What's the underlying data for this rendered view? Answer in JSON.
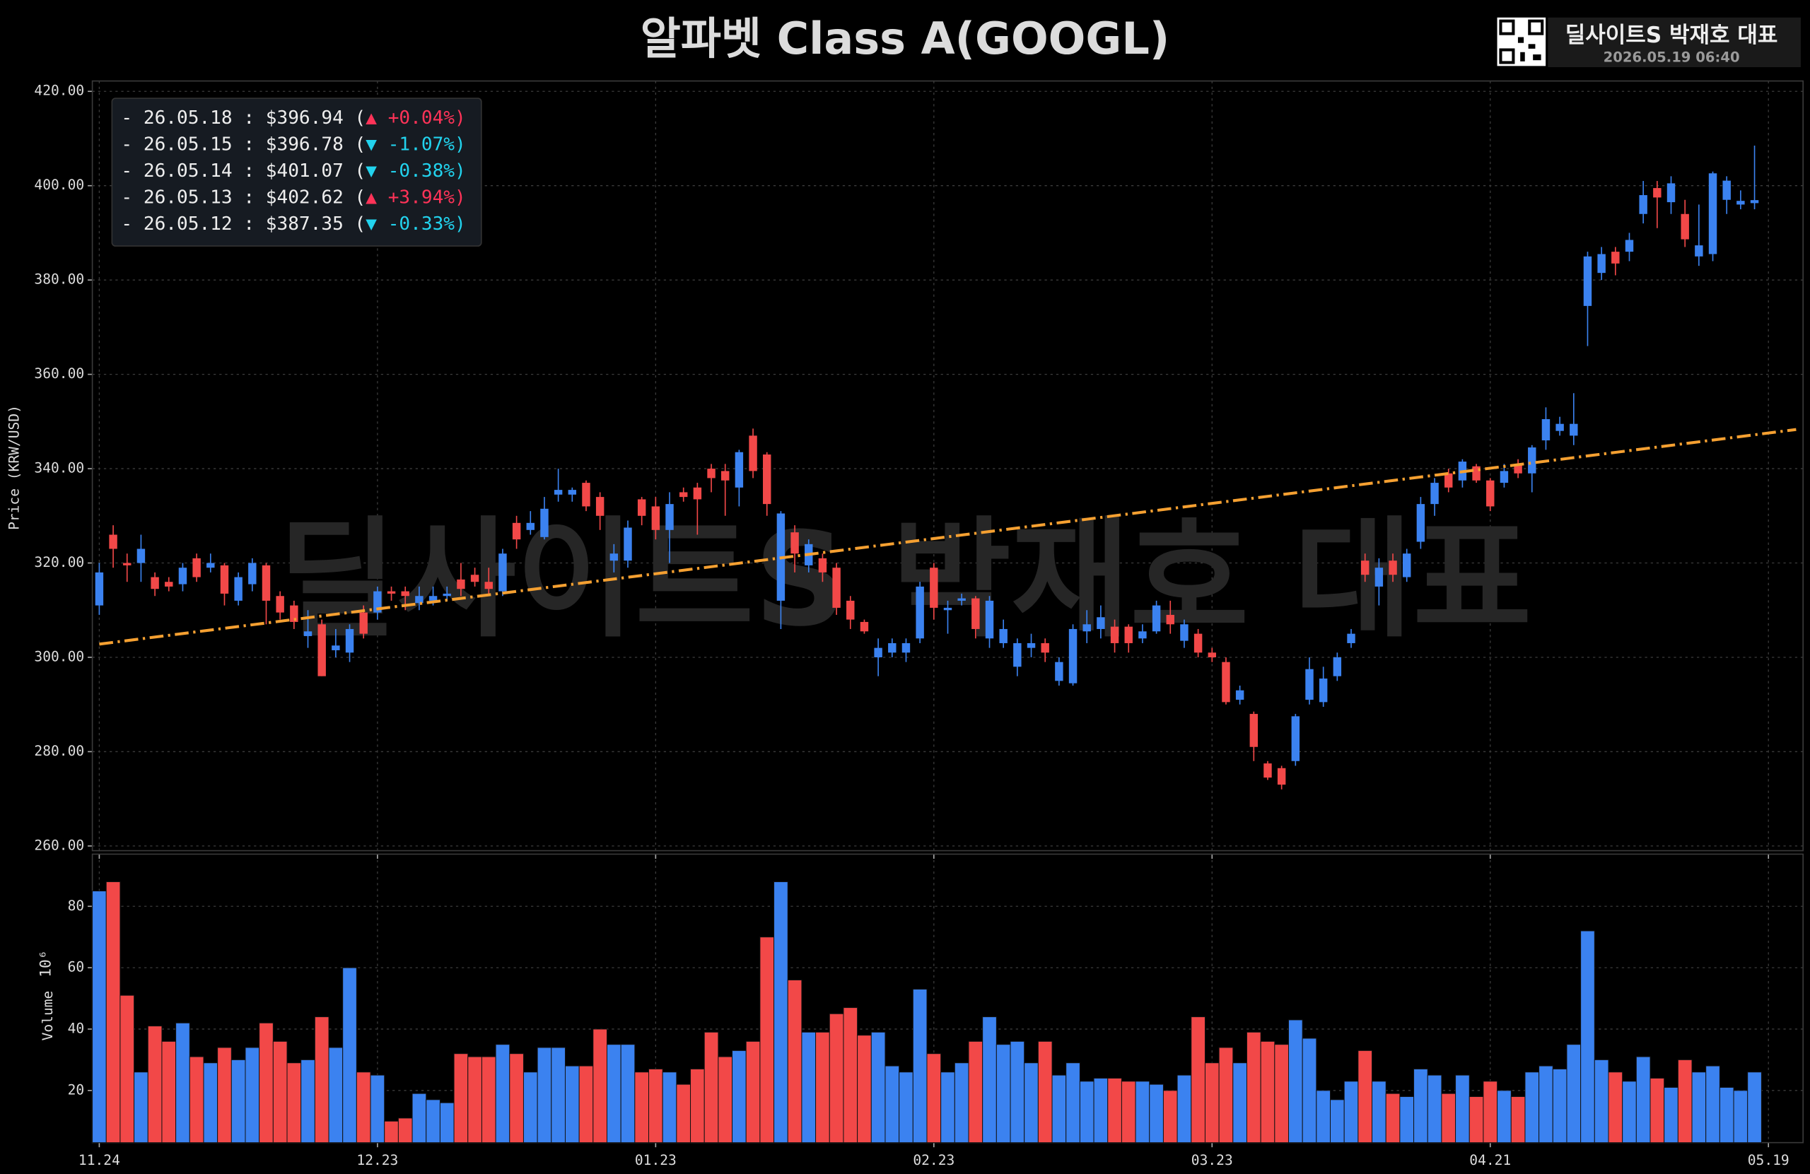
{
  "header": {
    "title": "알파벳 Class A(GOOGL)",
    "brand": "딜사이트S 박재호 대표",
    "timestamp": "2026.05.19 06:40"
  },
  "watermark": "딜사이트S 박재호 대표",
  "chart_data": [
    {
      "type": "candlestick",
      "ylabel": "Price (KRW/USD)",
      "up_color": "#3b82f0",
      "down_color": "#f24848",
      "grid": true,
      "ylim": [
        259.0,
        422.2
      ],
      "yticks": [
        {
          "value": 260,
          "label": "260.00"
        },
        {
          "value": 280,
          "label": "280.00"
        },
        {
          "value": 300,
          "label": "300.00"
        },
        {
          "value": 320,
          "label": "320.00"
        },
        {
          "value": 340,
          "label": "340.00"
        },
        {
          "value": 360,
          "label": "360.00"
        },
        {
          "value": 380,
          "label": "380.00"
        },
        {
          "value": 400,
          "label": "400.00"
        },
        {
          "value": 420,
          "label": "420.00"
        }
      ],
      "open": [
        311,
        326,
        320,
        320,
        317,
        316,
        315.5,
        321,
        319,
        319.5,
        312,
        315.5,
        319.5,
        313,
        311,
        304.5,
        307,
        301.5,
        301,
        309.5,
        309.5,
        314,
        314,
        311.5,
        312,
        313,
        316.5,
        317.5,
        316,
        314,
        328.5,
        327,
        325.5,
        334.5,
        334.5,
        337,
        334,
        320.5,
        320.5,
        333.5,
        332,
        327,
        335,
        336,
        340,
        339.5,
        336,
        347,
        343,
        312,
        326.5,
        319.5,
        321,
        319,
        312,
        307.5,
        300,
        301,
        301,
        304,
        319,
        310,
        312,
        312.5,
        304,
        303,
        298,
        302,
        303,
        295,
        294.5,
        305.5,
        306,
        306.5,
        306.5,
        304,
        305.5,
        309,
        303.5,
        305,
        301,
        299,
        291,
        288,
        277.5,
        276.5,
        278,
        291,
        290.5,
        296,
        303,
        320.5,
        315,
        320.5,
        317,
        324.5,
        332.5,
        339,
        337.5,
        340.5,
        337.5,
        337,
        341,
        339,
        346,
        348,
        347,
        374.5,
        381.5,
        386,
        386,
        394,
        399.5,
        396.5,
        394,
        385,
        385.5,
        397,
        396,
        396.3,
        null
      ],
      "high": [
        320,
        328,
        322,
        326,
        318,
        317,
        320,
        322,
        322,
        320,
        318,
        321,
        320,
        314,
        312,
        310,
        308,
        306,
        307,
        311,
        315,
        315,
        315,
        315,
        315,
        315,
        320,
        319,
        319,
        323,
        330,
        331,
        334,
        340,
        336,
        337.5,
        335,
        324,
        329,
        334,
        334,
        335,
        336,
        337,
        341,
        341,
        344,
        348.5,
        343.5,
        331,
        328,
        325,
        322,
        320,
        313,
        308,
        304,
        304,
        304,
        316,
        320,
        312,
        313.5,
        313,
        313,
        308,
        304,
        305,
        304,
        300,
        307,
        310,
        311,
        308,
        307,
        307,
        312,
        312,
        308,
        306,
        302,
        300,
        294,
        288.5,
        278,
        277,
        288,
        300,
        298,
        301,
        306,
        322,
        321,
        322,
        323,
        334,
        338,
        340,
        342,
        341,
        338,
        341,
        342,
        345,
        353,
        351,
        356,
        386,
        387,
        387,
        390,
        401,
        401,
        402,
        397,
        396,
        403,
        402,
        399,
        408.5,
        null
      ],
      "low": [
        309,
        319,
        316,
        316,
        313,
        314,
        314,
        316,
        318,
        311,
        311,
        314,
        307,
        308,
        306,
        302,
        296,
        300,
        299,
        304,
        308,
        312,
        310,
        310,
        311,
        312,
        313,
        315,
        313,
        313,
        323,
        326,
        325,
        333,
        333,
        331,
        327,
        318,
        319,
        328,
        325,
        320,
        333,
        326,
        335,
        330,
        332,
        338,
        330,
        306,
        318,
        318,
        316,
        309,
        306,
        305,
        296,
        300,
        299,
        303,
        308,
        305,
        311,
        304,
        302,
        302,
        296,
        300,
        299,
        294,
        294,
        303,
        304,
        301,
        301,
        303,
        305,
        305,
        302,
        300,
        299,
        290,
        290,
        278,
        274,
        272,
        277,
        290,
        289.5,
        295,
        302,
        316,
        311,
        316,
        316,
        323,
        330,
        335,
        336,
        337,
        331,
        336,
        338,
        335,
        344,
        347,
        345,
        366,
        380,
        381,
        384,
        392,
        391,
        394,
        387,
        383,
        384,
        394,
        395,
        395,
        null
      ],
      "close": [
        318,
        323,
        319.5,
        323,
        314.5,
        315,
        319,
        317,
        320,
        313.5,
        317,
        320,
        312,
        309.5,
        307.5,
        305.5,
        296,
        302.5,
        306,
        305,
        314,
        313.5,
        313,
        313,
        313,
        313.5,
        314.5,
        316,
        314.5,
        322,
        325,
        328.5,
        331.5,
        335.5,
        335.5,
        332,
        330,
        322,
        327.5,
        330,
        327,
        332.5,
        334,
        333.5,
        338,
        337.5,
        343.5,
        339.5,
        332.5,
        330.5,
        322,
        324,
        318,
        310.5,
        308,
        305.5,
        302,
        303,
        303,
        315,
        310.5,
        310.5,
        312.5,
        306,
        312,
        306,
        303,
        303,
        301,
        299,
        306,
        307,
        308.5,
        303,
        303,
        305.5,
        311,
        307,
        307,
        301,
        300,
        290.5,
        293,
        281,
        274.5,
        273,
        287.5,
        297.5,
        295.5,
        300,
        305,
        317.5,
        319,
        317.5,
        322,
        332.5,
        337,
        336,
        341.5,
        337.5,
        332,
        339.5,
        339,
        344.5,
        350.5,
        349.5,
        349.5,
        385,
        385.5,
        383.5,
        388.5,
        398,
        397.5,
        400.5,
        388.63,
        387.35,
        402.62,
        401.07,
        396.78,
        396.94,
        null
      ],
      "trend_line": {
        "values": [
          302.8,
          348.3
        ],
        "color": "#f5a031"
      },
      "legend": [
        {
          "text": "- 26.05.18 : $396.94 (",
          "change": "▲ +0.04%)",
          "color": "#ff3358"
        },
        {
          "text": "- 26.05.15 : $396.78 (",
          "change": "▼ -1.07%)",
          "color": "#22d3ee"
        },
        {
          "text": "- 26.05.14 : $401.07 (",
          "change": "▼ -0.38%)",
          "color": "#22d3ee"
        },
        {
          "text": "- 26.05.13 : $402.62 (",
          "change": "▲ +3.94%)",
          "color": "#ff3358"
        },
        {
          "text": "- 26.05.12 : $387.35 (",
          "change": "▼ -0.33%)",
          "color": "#22d3ee"
        }
      ]
    },
    {
      "type": "bar",
      "ylabel": "Volume",
      "offset_label": "10⁶",
      "grid": true,
      "ylim": [
        3,
        97
      ],
      "yticks": [
        20,
        40,
        60,
        80
      ],
      "categories": [
        "11.24",
        null,
        null,
        null,
        null,
        null,
        null,
        null,
        null,
        null,
        null,
        null,
        null,
        null,
        null,
        null,
        null,
        null,
        null,
        null,
        "12.23",
        null,
        null,
        null,
        null,
        null,
        null,
        null,
        null,
        null,
        null,
        null,
        null,
        null,
        null,
        null,
        null,
        null,
        null,
        null,
        "01.23",
        null,
        null,
        null,
        null,
        null,
        null,
        null,
        null,
        null,
        null,
        null,
        null,
        null,
        null,
        null,
        null,
        null,
        null,
        null,
        "02.23",
        null,
        null,
        null,
        null,
        null,
        null,
        null,
        null,
        null,
        null,
        null,
        null,
        null,
        null,
        null,
        null,
        null,
        null,
        null,
        "03.23",
        null,
        null,
        null,
        null,
        null,
        null,
        null,
        null,
        null,
        null,
        null,
        null,
        null,
        null,
        null,
        null,
        null,
        null,
        null,
        "04.21",
        null,
        null,
        null,
        null,
        null,
        null,
        null,
        null,
        null,
        null,
        null,
        null,
        null,
        null,
        null,
        null,
        null,
        null,
        null,
        "05.19"
      ],
      "values": [
        85,
        88,
        51,
        26,
        41,
        36,
        42,
        31,
        29,
        34,
        30,
        34,
        42,
        36,
        29,
        30,
        44,
        34,
        60,
        26,
        25,
        10,
        11,
        19,
        17,
        16,
        32,
        31,
        31,
        35,
        32,
        26,
        34,
        34,
        28,
        28,
        40,
        35,
        35,
        26,
        27,
        26,
        22,
        27,
        39,
        31,
        33,
        36,
        70,
        88,
        56,
        39,
        39,
        45,
        47,
        38,
        39,
        28,
        26,
        53,
        32,
        26,
        29,
        36,
        44,
        35,
        36,
        29,
        36,
        25,
        29,
        23,
        24,
        24,
        23,
        23,
        22,
        20,
        25,
        44,
        29,
        34,
        29,
        39,
        36,
        35,
        43,
        37,
        20,
        17,
        23,
        33,
        23,
        19,
        18,
        27,
        25,
        19,
        25,
        18,
        23,
        20,
        18,
        26,
        28,
        27,
        35,
        72,
        30,
        26,
        23,
        31,
        24,
        21,
        30,
        26,
        28,
        21,
        20,
        26,
        null
      ]
    }
  ]
}
